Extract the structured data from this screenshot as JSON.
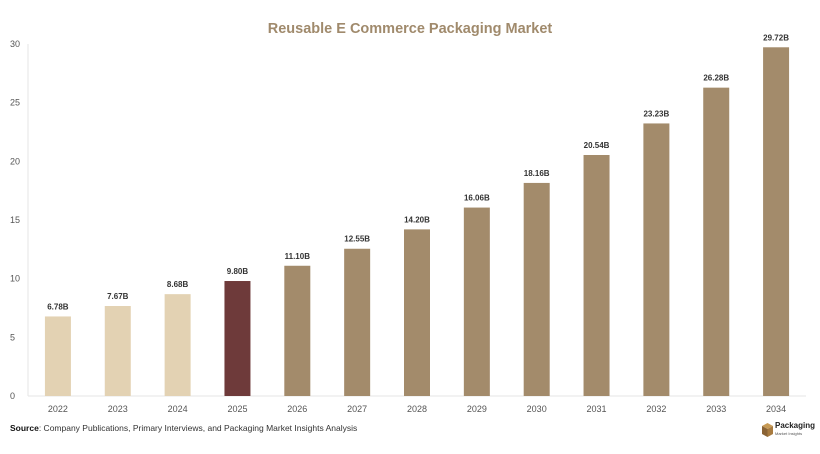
{
  "chart_data": {
    "type": "bar",
    "title": "Reusable E Commerce Packaging Market",
    "categories": [
      "2022",
      "2023",
      "2024",
      "2025",
      "2026",
      "2027",
      "2028",
      "2029",
      "2030",
      "2031",
      "2032",
      "2033",
      "2034"
    ],
    "values": [
      6.78,
      7.67,
      8.68,
      9.8,
      11.1,
      12.55,
      14.2,
      16.06,
      18.16,
      20.54,
      23.23,
      26.28,
      29.72
    ],
    "value_labels": [
      "6.78B",
      "7.67B",
      "8.68B",
      "9.80B",
      "11.10B",
      "12.55B",
      "14.20B",
      "16.06B",
      "18.16B",
      "20.54B",
      "23.23B",
      "26.28B",
      "29.72B"
    ],
    "ylim": [
      0,
      30
    ],
    "yticks": [
      0,
      5,
      10,
      15,
      20,
      25,
      30
    ],
    "xlabel": "",
    "ylabel": "",
    "grid": false,
    "colors": {
      "historical": "#e3d2b3",
      "current": "#6e3a3a",
      "forecast": "#a38b6b"
    },
    "bar_color_groups": [
      "historical",
      "historical",
      "historical",
      "current",
      "forecast",
      "forecast",
      "forecast",
      "forecast",
      "forecast",
      "forecast",
      "forecast",
      "forecast",
      "forecast"
    ]
  },
  "footer": {
    "source_label": "Source",
    "source_text": ": Company Publications, Primary Interviews, and Packaging Market Insights Analysis"
  },
  "logo": {
    "name": "Packaging",
    "subtitle": "Market Insights",
    "icon": "box-icon"
  }
}
